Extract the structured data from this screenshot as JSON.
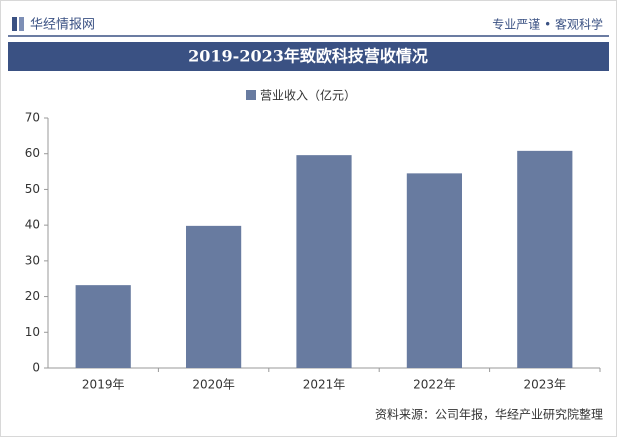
{
  "header": {
    "brand": "华经情报网",
    "slogan": "专业严谨 • 客观科学"
  },
  "chart_data": {
    "type": "bar",
    "title": "2019-2023年致欧科技营收情况",
    "series": [
      {
        "name": "营业收入（亿元）",
        "color": "#687ba0",
        "values": [
          23.2,
          39.8,
          59.6,
          54.5,
          60.8
        ]
      }
    ],
    "categories": [
      "2019年",
      "2020年",
      "2021年",
      "2022年",
      "2023年"
    ],
    "ylim": [
      0,
      70
    ],
    "yticks": [
      0,
      10,
      20,
      30,
      40,
      50,
      60,
      70
    ],
    "grid": false,
    "source": "资料来源：公司年报，华经产业研究院整理"
  }
}
